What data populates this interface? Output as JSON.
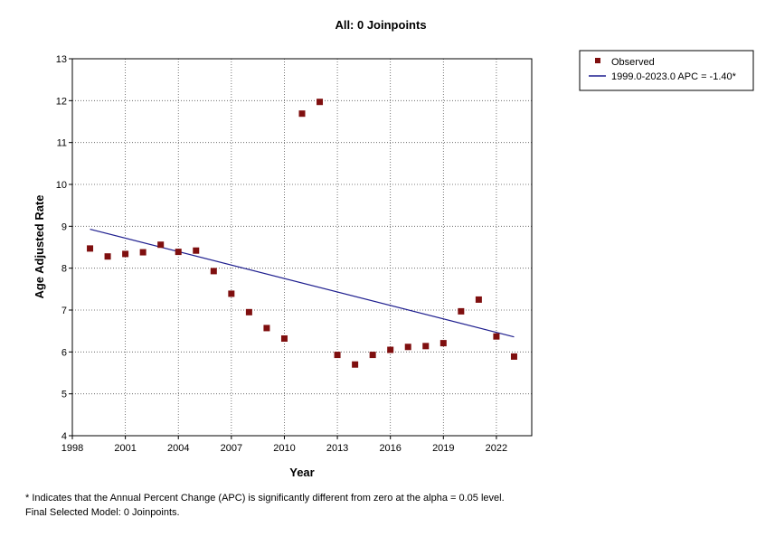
{
  "chart_data": {
    "type": "scatter",
    "title": "All: 0 Joinpoints",
    "xlabel": "Year",
    "ylabel": "Age Adjusted Rate",
    "xlim": [
      1998,
      2024
    ],
    "ylim": [
      4,
      13
    ],
    "x_ticks": [
      1998,
      2001,
      2004,
      2007,
      2010,
      2013,
      2016,
      2019,
      2022
    ],
    "y_ticks": [
      4,
      5,
      6,
      7,
      8,
      9,
      10,
      11,
      12,
      13
    ],
    "grid": true,
    "legend_position": "top-right",
    "series": [
      {
        "name": "Observed",
        "kind": "points",
        "marker": "square",
        "color": "#7f0f0f",
        "x": [
          1999,
          2000,
          2001,
          2002,
          2003,
          2004,
          2005,
          2006,
          2007,
          2008,
          2009,
          2010,
          2011,
          2012,
          2013,
          2014,
          2015,
          2016,
          2017,
          2018,
          2019,
          2020,
          2021,
          2022,
          2023
        ],
        "y": [
          8.47,
          8.28,
          8.34,
          8.38,
          8.56,
          8.39,
          8.42,
          7.93,
          7.39,
          6.95,
          6.57,
          6.32,
          11.69,
          11.97,
          5.93,
          5.7,
          5.93,
          6.05,
          6.12,
          6.14,
          6.21,
          6.97,
          7.25,
          6.37,
          5.89
        ]
      },
      {
        "name": "1999.0-2023.0 APC  = -1.40*",
        "kind": "line",
        "color": "#1f1f8f",
        "x": [
          1999,
          2023
        ],
        "y": [
          8.93,
          6.36
        ]
      }
    ]
  },
  "footnotes": {
    "line1": "* Indicates that the Annual Percent Change (APC) is significantly different from zero at the alpha = 0.05 level.",
    "line2": "Final Selected Model: 0 Joinpoints."
  }
}
